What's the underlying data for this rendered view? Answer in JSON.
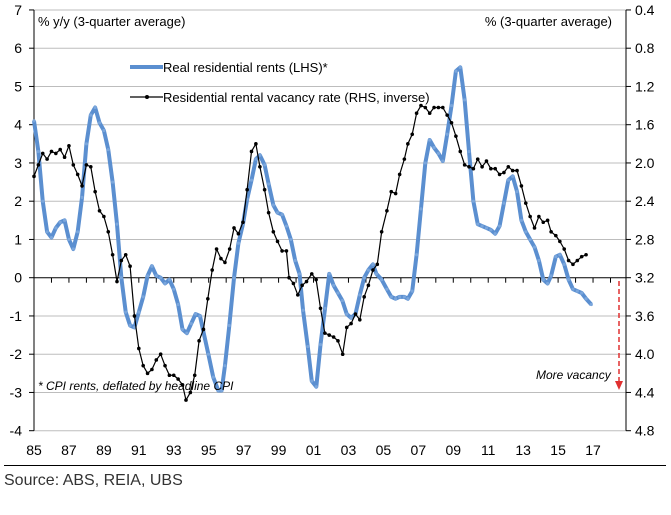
{
  "chart_data": {
    "type": "line",
    "left_axis_label": "% y/y (3-quarter average)",
    "right_axis_label": "% (3-quarter average)",
    "ylim_left": [
      -4,
      7
    ],
    "ylim_right": [
      4.8,
      0.4
    ],
    "right_axis_inverted": true,
    "left_ticks": [
      "7",
      "6",
      "5",
      "4",
      "3",
      "2",
      "1",
      "0",
      "-1",
      "-2",
      "-3",
      "-4"
    ],
    "right_ticks": [
      "0.4",
      "0.8",
      "1.2",
      "1.6",
      "2.0",
      "2.4",
      "2.8",
      "3.2",
      "3.6",
      "4.0",
      "4.4",
      "4.8"
    ],
    "x_ticks": [
      "85",
      "87",
      "89",
      "91",
      "93",
      "95",
      "97",
      "99",
      "01",
      "03",
      "05",
      "07",
      "09",
      "11",
      "13",
      "15",
      "17"
    ],
    "grid": true,
    "legend_position": "top-center",
    "footnote": "* CPI rents, deflated by headline CPI",
    "annotation": "More vacancy",
    "series": [
      {
        "name": "Real residential rents (LHS)*",
        "axis": "left",
        "color": "#5b8fd0",
        "points": [
          [
            1985.0,
            4.1
          ],
          [
            1985.25,
            3.3
          ],
          [
            1985.5,
            2.0
          ],
          [
            1985.75,
            1.2
          ],
          [
            1986.0,
            1.05
          ],
          [
            1986.25,
            1.3
          ],
          [
            1986.5,
            1.45
          ],
          [
            1986.75,
            1.5
          ],
          [
            1987.0,
            1.0
          ],
          [
            1987.25,
            0.75
          ],
          [
            1987.5,
            1.2
          ],
          [
            1987.75,
            2.1
          ],
          [
            1988.0,
            3.5
          ],
          [
            1988.25,
            4.25
          ],
          [
            1988.5,
            4.45
          ],
          [
            1988.75,
            4.05
          ],
          [
            1989.0,
            3.85
          ],
          [
            1989.25,
            3.35
          ],
          [
            1989.5,
            2.5
          ],
          [
            1989.75,
            1.4
          ],
          [
            1990.0,
            0.0
          ],
          [
            1990.25,
            -0.9
          ],
          [
            1990.5,
            -1.25
          ],
          [
            1990.75,
            -1.3
          ],
          [
            1991.0,
            -0.9
          ],
          [
            1991.25,
            -0.5
          ],
          [
            1991.5,
            0.05
          ],
          [
            1991.75,
            0.3
          ],
          [
            1992.0,
            0.05
          ],
          [
            1992.25,
            0.0
          ],
          [
            1992.5,
            -0.15
          ],
          [
            1992.75,
            -0.05
          ],
          [
            1993.0,
            -0.3
          ],
          [
            1993.25,
            -0.7
          ],
          [
            1993.5,
            -1.35
          ],
          [
            1993.75,
            -1.45
          ],
          [
            1994.0,
            -1.2
          ],
          [
            1994.25,
            -0.95
          ],
          [
            1994.5,
            -1.0
          ],
          [
            1994.98,
            -2.0
          ],
          [
            1995.26,
            -2.6
          ],
          [
            1995.55,
            -2.95
          ],
          [
            1995.74,
            -2.95
          ],
          [
            1995.93,
            -2.3
          ],
          [
            1996.18,
            -1.25
          ],
          [
            1996.45,
            0.0
          ],
          [
            1996.7,
            0.9
          ],
          [
            1996.96,
            1.4
          ],
          [
            1997.2,
            2.05
          ],
          [
            1997.45,
            2.55
          ],
          [
            1997.7,
            3.1
          ],
          [
            1997.93,
            3.2
          ],
          [
            1998.2,
            2.95
          ],
          [
            1998.43,
            2.45
          ],
          [
            1998.7,
            1.9
          ],
          [
            1998.94,
            1.7
          ],
          [
            1999.2,
            1.65
          ],
          [
            1999.45,
            1.35
          ],
          [
            1999.7,
            1.0
          ],
          [
            1999.95,
            0.45
          ],
          [
            2000.2,
            0.1
          ],
          [
            2000.4,
            -0.85
          ],
          [
            2000.67,
            -1.8
          ],
          [
            2000.9,
            -2.7
          ],
          [
            2001.16,
            -2.85
          ],
          [
            2001.4,
            -1.75
          ],
          [
            2001.66,
            -0.8
          ],
          [
            2001.9,
            0.1
          ],
          [
            2002.15,
            -0.2
          ],
          [
            2002.4,
            -0.4
          ],
          [
            2002.65,
            -0.6
          ],
          [
            2002.9,
            -0.95
          ],
          [
            2003.15,
            -1.05
          ],
          [
            2003.4,
            -0.95
          ],
          [
            2003.65,
            -0.45
          ],
          [
            2003.9,
            0.0
          ],
          [
            2004.14,
            0.2
          ],
          [
            2004.4,
            0.35
          ],
          [
            2004.6,
            0.1
          ],
          [
            2004.9,
            -0.05
          ],
          [
            2005.2,
            -0.3
          ],
          [
            2005.45,
            -0.5
          ],
          [
            2005.7,
            -0.55
          ],
          [
            2005.93,
            -0.5
          ],
          [
            2006.2,
            -0.5
          ],
          [
            2006.4,
            -0.55
          ],
          [
            2006.65,
            -0.35
          ],
          [
            2006.9,
            0.6
          ],
          [
            2007.15,
            1.8
          ],
          [
            2007.4,
            3.0
          ],
          [
            2007.65,
            3.6
          ],
          [
            2007.9,
            3.4
          ],
          [
            2008.15,
            3.25
          ],
          [
            2008.4,
            3.05
          ],
          [
            2008.65,
            3.75
          ],
          [
            2008.9,
            4.5
          ],
          [
            2009.15,
            5.4
          ],
          [
            2009.4,
            5.5
          ],
          [
            2009.65,
            4.65
          ],
          [
            2009.9,
            3.3
          ],
          [
            2010.15,
            2.0
          ],
          [
            2010.4,
            1.4
          ],
          [
            2010.65,
            1.35
          ],
          [
            2010.9,
            1.3
          ],
          [
            2011.15,
            1.25
          ],
          [
            2011.4,
            1.15
          ],
          [
            2011.65,
            1.35
          ],
          [
            2011.9,
            1.95
          ],
          [
            2012.15,
            2.55
          ],
          [
            2012.4,
            2.65
          ],
          [
            2012.65,
            2.25
          ],
          [
            2012.9,
            1.5
          ],
          [
            2013.15,
            1.2
          ],
          [
            2013.4,
            1.0
          ],
          [
            2013.65,
            0.8
          ],
          [
            2013.9,
            0.45
          ],
          [
            2014.15,
            -0.05
          ],
          [
            2014.4,
            -0.15
          ],
          [
            2014.6,
            0.05
          ],
          [
            2014.87,
            0.55
          ],
          [
            2015.1,
            0.6
          ],
          [
            2015.35,
            0.35
          ],
          [
            2015.6,
            -0.05
          ],
          [
            2015.85,
            -0.3
          ],
          [
            2016.1,
            -0.35
          ],
          [
            2016.35,
            -0.4
          ],
          [
            2016.6,
            -0.55
          ],
          [
            2016.9,
            -0.7
          ]
        ]
      },
      {
        "name": "Residential rental vacancy rate (RHS, inverse)",
        "axis": "right",
        "color": "#000000",
        "points": [
          [
            1985.0,
            2.14
          ],
          [
            1985.25,
            2.02
          ],
          [
            1985.5,
            1.9
          ],
          [
            1985.75,
            1.96
          ],
          [
            1986.0,
            1.88
          ],
          [
            1986.25,
            1.9
          ],
          [
            1986.5,
            1.86
          ],
          [
            1986.75,
            1.94
          ],
          [
            1987.0,
            1.82
          ],
          [
            1987.25,
            2.02
          ],
          [
            1987.5,
            2.12
          ],
          [
            1987.75,
            2.24
          ],
          [
            1988.0,
            2.02
          ],
          [
            1988.25,
            2.04
          ],
          [
            1988.5,
            2.3
          ],
          [
            1988.75,
            2.5
          ],
          [
            1989.0,
            2.56
          ],
          [
            1989.25,
            2.72
          ],
          [
            1989.5,
            2.96
          ],
          [
            1989.75,
            3.24
          ],
          [
            1990.0,
            3.02
          ],
          [
            1990.25,
            2.96
          ],
          [
            1990.5,
            3.08
          ],
          [
            1990.75,
            3.6
          ],
          [
            1991.0,
            3.94
          ],
          [
            1991.25,
            4.12
          ],
          [
            1991.5,
            4.2
          ],
          [
            1991.75,
            4.16
          ],
          [
            1992.0,
            4.06
          ],
          [
            1992.25,
            4.0
          ],
          [
            1992.5,
            4.12
          ],
          [
            1992.75,
            4.22
          ],
          [
            1993.0,
            4.22
          ],
          [
            1993.25,
            4.26
          ],
          [
            1993.5,
            4.32
          ],
          [
            1993.7,
            4.48
          ],
          [
            1993.95,
            4.4
          ],
          [
            1994.2,
            4.22
          ],
          [
            1994.45,
            3.86
          ],
          [
            1994.7,
            3.74
          ],
          [
            1994.95,
            3.42
          ],
          [
            1995.2,
            3.12
          ],
          [
            1995.45,
            2.9
          ],
          [
            1995.7,
            3.0
          ],
          [
            1995.93,
            3.04
          ],
          [
            1996.2,
            2.9
          ],
          [
            1996.45,
            2.68
          ],
          [
            1996.7,
            2.74
          ],
          [
            1996.96,
            2.62
          ],
          [
            1997.2,
            2.28
          ],
          [
            1997.45,
            1.88
          ],
          [
            1997.7,
            1.8
          ],
          [
            1997.93,
            2.04
          ],
          [
            1998.2,
            2.28
          ],
          [
            1998.43,
            2.52
          ],
          [
            1998.7,
            2.72
          ],
          [
            1998.94,
            2.82
          ],
          [
            1999.2,
            2.92
          ],
          [
            1999.45,
            2.92
          ],
          [
            1999.6,
            3.2
          ],
          [
            1999.85,
            3.26
          ],
          [
            2000.1,
            3.38
          ],
          [
            2000.35,
            3.28
          ],
          [
            2000.6,
            3.24
          ],
          [
            2000.9,
            3.16
          ],
          [
            2001.15,
            3.22
          ],
          [
            2001.4,
            3.52
          ],
          [
            2001.65,
            3.78
          ],
          [
            2001.9,
            3.8
          ],
          [
            2002.15,
            3.82
          ],
          [
            2002.4,
            3.86
          ],
          [
            2002.67,
            4.0
          ],
          [
            2002.9,
            3.72
          ],
          [
            2003.15,
            3.68
          ],
          [
            2003.4,
            3.58
          ],
          [
            2003.65,
            3.64
          ],
          [
            2003.9,
            3.4
          ],
          [
            2004.14,
            3.28
          ],
          [
            2004.4,
            3.12
          ],
          [
            2004.65,
            3.06
          ],
          [
            2004.9,
            2.72
          ],
          [
            2005.2,
            2.5
          ],
          [
            2005.45,
            2.3
          ],
          [
            2005.7,
            2.32
          ],
          [
            2005.93,
            2.12
          ],
          [
            2006.2,
            1.96
          ],
          [
            2006.4,
            1.8
          ],
          [
            2006.65,
            1.7
          ],
          [
            2006.9,
            1.48
          ],
          [
            2007.15,
            1.4
          ],
          [
            2007.4,
            1.42
          ],
          [
            2007.65,
            1.48
          ],
          [
            2007.9,
            1.42
          ],
          [
            2008.15,
            1.42
          ],
          [
            2008.4,
            1.42
          ],
          [
            2008.65,
            1.5
          ],
          [
            2008.9,
            1.58
          ],
          [
            2009.15,
            1.72
          ],
          [
            2009.4,
            1.88
          ],
          [
            2009.65,
            2.02
          ],
          [
            2009.9,
            2.04
          ],
          [
            2010.15,
            2.06
          ],
          [
            2010.4,
            1.96
          ],
          [
            2010.65,
            2.04
          ],
          [
            2010.9,
            1.98
          ],
          [
            2011.15,
            2.06
          ],
          [
            2011.4,
            2.06
          ],
          [
            2011.65,
            2.12
          ],
          [
            2011.9,
            2.1
          ],
          [
            2012.15,
            2.04
          ],
          [
            2012.4,
            2.08
          ],
          [
            2012.65,
            2.08
          ],
          [
            2012.9,
            2.24
          ],
          [
            2013.15,
            2.42
          ],
          [
            2013.4,
            2.56
          ],
          [
            2013.65,
            2.68
          ],
          [
            2013.9,
            2.56
          ],
          [
            2014.15,
            2.62
          ],
          [
            2014.4,
            2.6
          ],
          [
            2014.6,
            2.72
          ],
          [
            2014.87,
            2.76
          ],
          [
            2015.1,
            2.82
          ],
          [
            2015.35,
            2.9
          ],
          [
            2015.6,
            3.02
          ],
          [
            2015.85,
            3.06
          ],
          [
            2016.1,
            3.02
          ],
          [
            2016.35,
            2.98
          ],
          [
            2016.6,
            2.96
          ]
        ]
      }
    ]
  },
  "source": "Source:  ABS, REIA, UBS",
  "colors": {
    "annotation_arrow": "#e03030",
    "grid": "#bdbdbd"
  }
}
